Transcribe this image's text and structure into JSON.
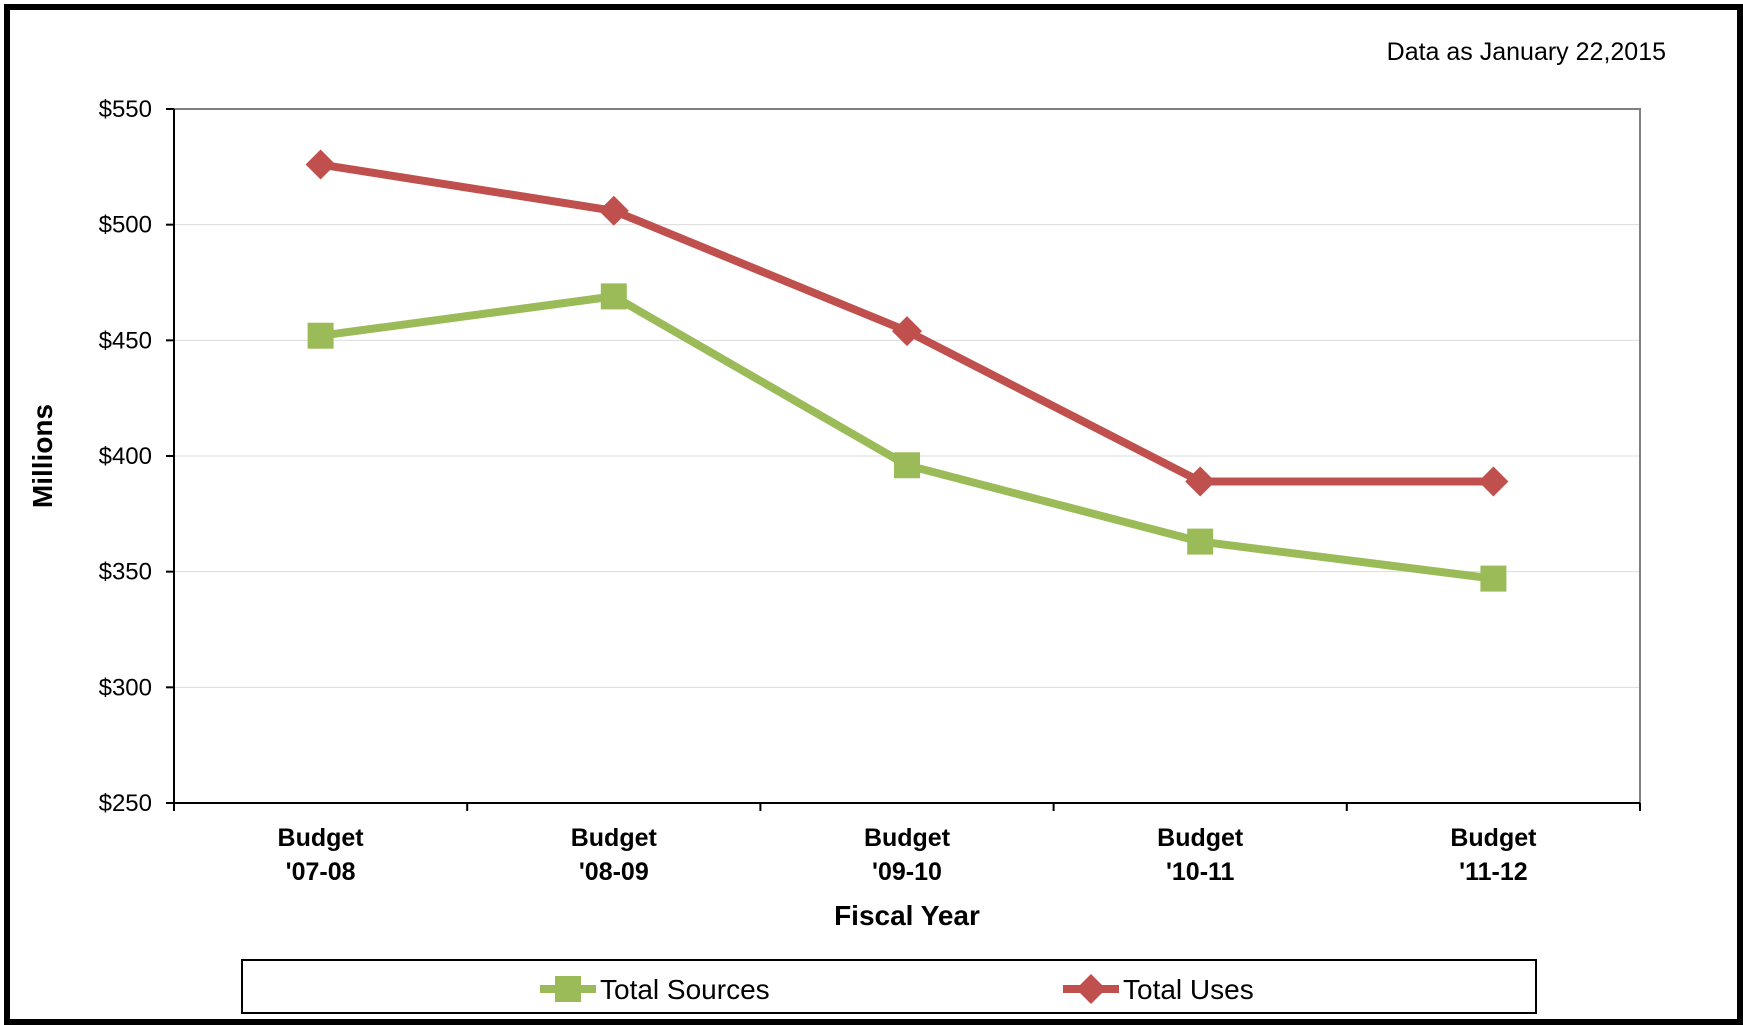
{
  "chart_data": {
    "type": "line",
    "title": "",
    "note": "Data as January 22,2015",
    "xlabel": "Fiscal Year",
    "ylabel": "Millions",
    "categories": [
      [
        "Budget",
        "'07-08"
      ],
      [
        "Budget",
        "'08-09"
      ],
      [
        "Budget",
        "'09-10"
      ],
      [
        "Budget",
        "'10-11"
      ],
      [
        "Budget",
        "'11-12"
      ]
    ],
    "ylim": [
      250,
      550
    ],
    "yticks": [
      250,
      300,
      350,
      400,
      450,
      500,
      550
    ],
    "ytick_labels": [
      "$250",
      "$300",
      "$350",
      "$400",
      "$450",
      "$500",
      "$550"
    ],
    "grid": true,
    "legend_position": "bottom",
    "series": [
      {
        "name": "Total Sources",
        "values": [
          452,
          469,
          396,
          363,
          347
        ],
        "color": "#9BBB59",
        "marker": "square"
      },
      {
        "name": "Total Uses",
        "values": [
          526,
          506,
          454,
          389,
          389
        ],
        "color": "#C0504D",
        "marker": "diamond"
      }
    ]
  }
}
